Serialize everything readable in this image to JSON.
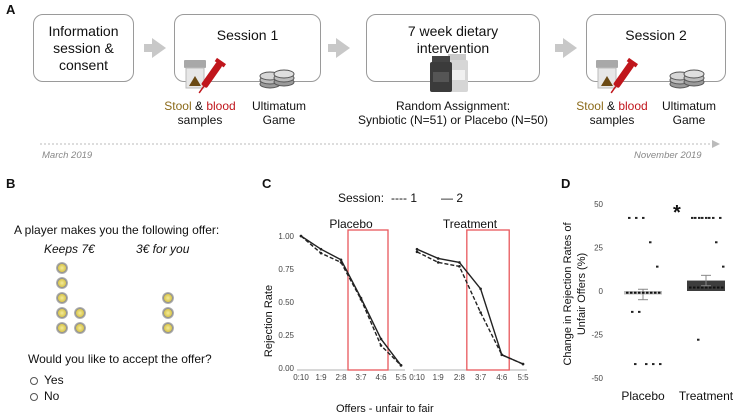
{
  "panel_a": {
    "letter": "A",
    "box1": "Information session & consent",
    "session1": {
      "title": "Session 1",
      "stool": "Stool",
      "amp": "&",
      "blood": "blood",
      "samples": "samples",
      "game_line1": "Ultimatum",
      "game_line2": "Game"
    },
    "intervention": {
      "title_line1": "7 week dietary",
      "title_line2": "intervention",
      "assignment_line1": "Random Assignment:",
      "assignment_line2": "Synbiotic (N=51) or Placebo (N=50)"
    },
    "session2": {
      "title": "Session 2",
      "stool": "Stool",
      "amp": "&",
      "blood": "blood",
      "samples": "samples",
      "game_line1": "Ultimatum",
      "game_line2": "Game"
    },
    "date_start": "March 2019",
    "date_end": "November 2019"
  },
  "panel_b": {
    "letter": "B",
    "prompt": "A player makes you the following offer:",
    "keeps": "Keeps 7€",
    "for_you": "3€ for you",
    "question": "Would you like to accept the offer?",
    "options": [
      "Yes",
      "No"
    ]
  },
  "panel_c": {
    "letter": "C",
    "legend_title": "Session:",
    "legend_1": "---- 1",
    "legend_2": "— 2",
    "ylabel": "Rejection Rate",
    "xlabel": "Offers - unfair to fair",
    "highlight_color": "#e8585c"
  },
  "panel_d": {
    "letter": "D",
    "ylabel_line1": "Change in Rejection Rates of",
    "ylabel_line2": "Unfair Offers (%)",
    "significance": "*",
    "categories": [
      "Placebo",
      "Treatment"
    ]
  },
  "chart_data": [
    {
      "type": "line",
      "title": "Placebo",
      "x": [
        "0:10",
        "1:9",
        "2:8",
        "3:7",
        "4:6",
        "5:5"
      ],
      "ylabel": "Rejection Rate",
      "xlabel": "Offers - unfair to fair",
      "ylim": [
        0,
        1
      ],
      "yticks": [
        "0.00",
        "0.25",
        "0.50",
        "0.75",
        "1.00"
      ],
      "series": [
        {
          "name": "1",
          "values": [
            1.0,
            0.87,
            0.8,
            0.52,
            0.17,
            0.02
          ]
        },
        {
          "name": "2",
          "values": [
            1.0,
            0.9,
            0.82,
            0.53,
            0.22,
            0.02
          ]
        }
      ]
    },
    {
      "type": "line",
      "title": "Treatment",
      "x": [
        "0:10",
        "1:9",
        "2:8",
        "3:7",
        "4:6",
        "5:5"
      ],
      "ylim": [
        0,
        1
      ],
      "series": [
        {
          "name": "1",
          "values": [
            0.88,
            0.8,
            0.77,
            0.42,
            0.1,
            0.03
          ]
        },
        {
          "name": "2",
          "values": [
            0.9,
            0.83,
            0.8,
            0.6,
            0.1,
            0.03
          ]
        }
      ]
    },
    {
      "type": "bar",
      "categories": [
        "Placebo",
        "Treatment"
      ],
      "values": [
        -2,
        6
      ],
      "errors": [
        3,
        3
      ],
      "ylim": [
        -50,
        50
      ],
      "yticks": [
        "-50",
        "-25",
        "0",
        "25",
        "50"
      ],
      "colors": [
        "#bdbdbd",
        "#3d3d3d"
      ],
      "points": {
        "Placebo": [
          42,
          42,
          42,
          28,
          14,
          -12,
          -12,
          -42,
          -42,
          -42,
          -42
        ],
        "Treatment": [
          42,
          42,
          42,
          42,
          42,
          42,
          42,
          42,
          28,
          14,
          -28
        ]
      }
    }
  ]
}
